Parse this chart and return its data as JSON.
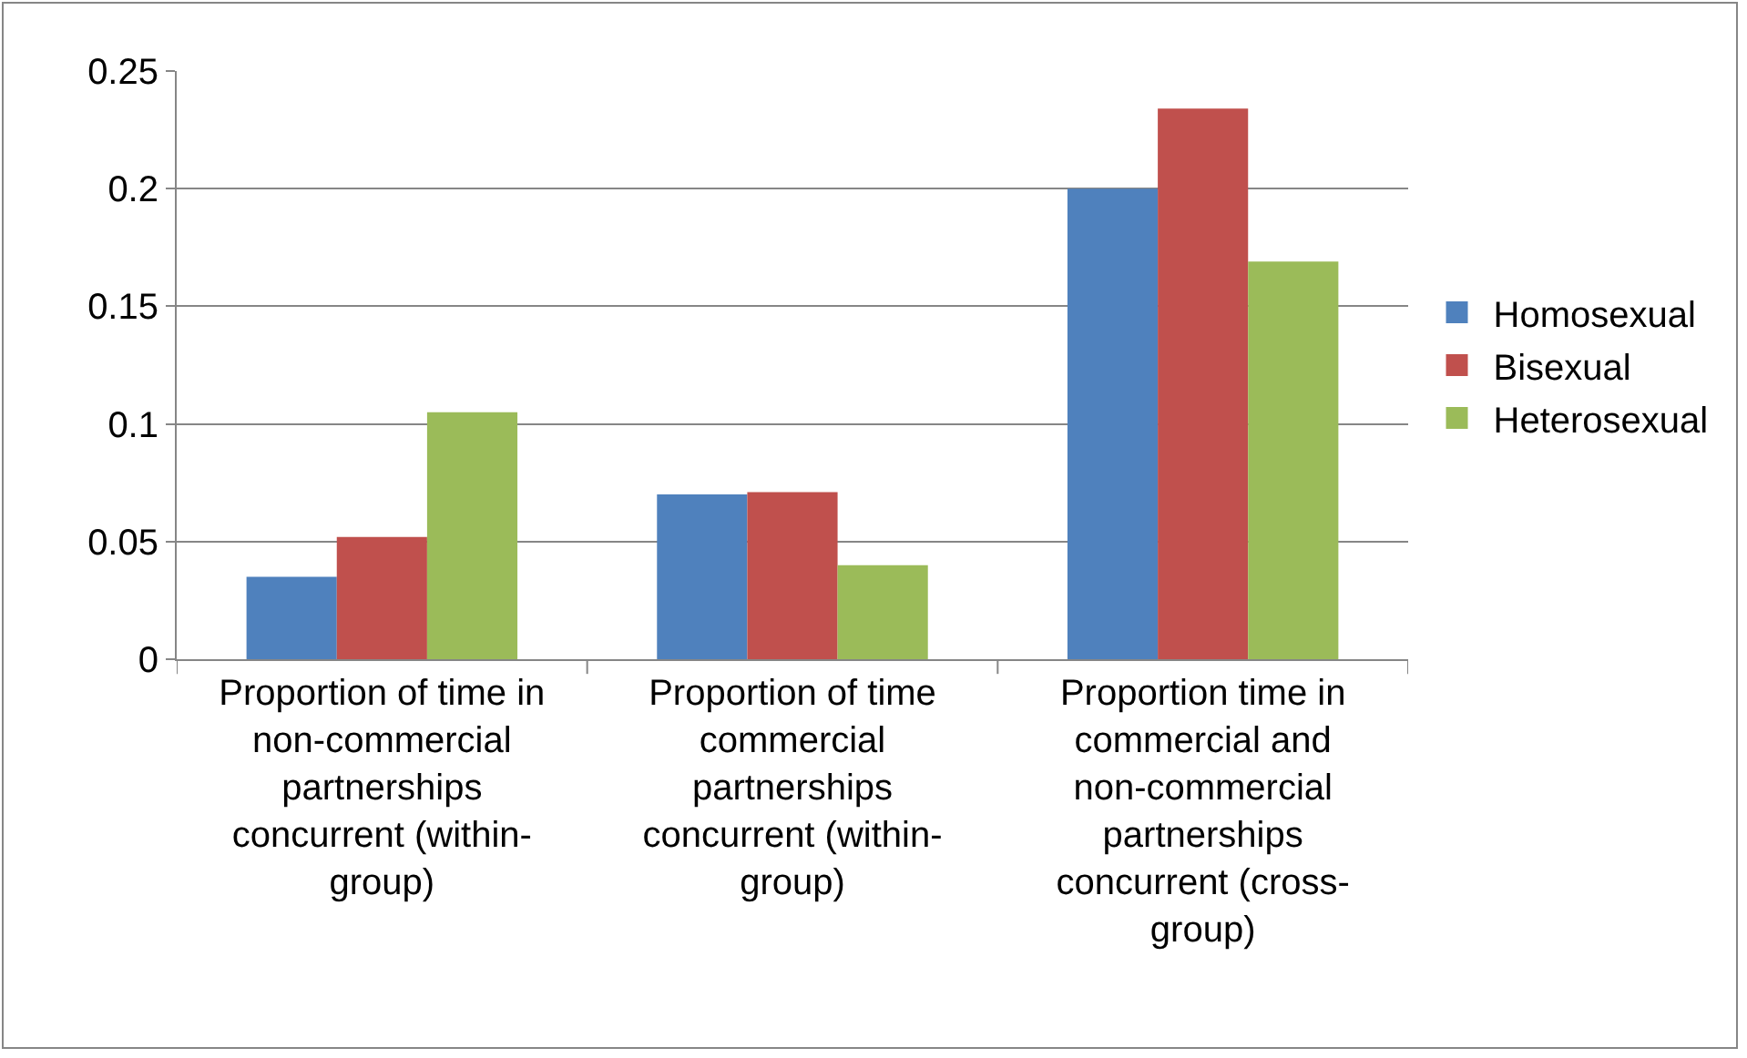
{
  "chart_data": {
    "type": "bar",
    "categories": [
      "Proportion of time in non-commercial partnerships concurrent (within-group)",
      "Proportion of time commercial partnerships concurrent (within-group)",
      "Proportion time in commercial and non-commercial partnerships concurrent (cross-group)"
    ],
    "series": [
      {
        "name": "Homosexual",
        "color": "#4f81bd",
        "values": [
          0.035,
          0.07,
          0.2
        ]
      },
      {
        "name": "Bisexual",
        "color": "#c0504d",
        "values": [
          0.052,
          0.071,
          0.234
        ]
      },
      {
        "name": "Heterosexual",
        "color": "#9bbb59",
        "values": [
          0.105,
          0.04,
          0.169
        ]
      }
    ],
    "ylim": [
      0,
      0.25
    ],
    "yticks": [
      0,
      0.05,
      0.1,
      0.15,
      0.2,
      0.25
    ],
    "grid": "y",
    "legend": "right"
  }
}
